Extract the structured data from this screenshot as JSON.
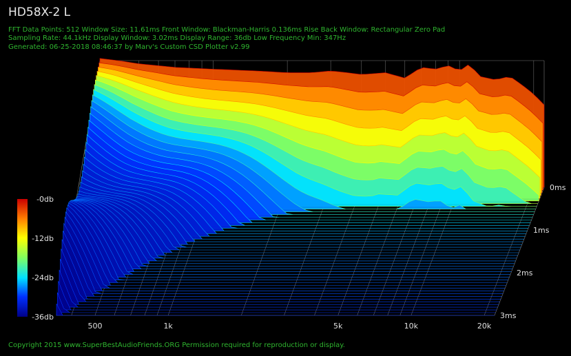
{
  "title": "HD58X-2 L",
  "info_lines": [
    "FFT Data Points: 512   Window Size: 11.61ms   Front Window: Blackman-Harris 0.136ms Rise   Back Window: Rectangular Zero Pad",
    "Sampling Rate: 44.1kHz  Display Window: 3.02ms   Display Range: 36db  Low Frequency Min: 347Hz",
    "Generated: 06-25-2018 08:46:37 by Marv's Custom CSD Plotter v2.99"
  ],
  "copyright": "Copyright 2015 www.SuperBestAudioFriends.ORG Permission required for reproduction or display.",
  "colors": {
    "background": "#000000",
    "info_text": "#2fb52f",
    "grid": "#7a7a7a"
  },
  "chart_data": {
    "type": "waterfall",
    "x_axis": {
      "scale": "log",
      "range": [
        347,
        22050
      ],
      "tick_labels": [
        "500",
        "1k",
        "5k",
        "10k",
        "20k"
      ],
      "tick_values": [
        500,
        1000,
        5000,
        10000,
        20000
      ]
    },
    "z_axis": {
      "range": [
        0,
        3
      ],
      "tick_labels": [
        "0ms",
        "1ms",
        "2ms",
        "3ms"
      ],
      "tick_values": [
        0,
        1,
        2,
        3
      ]
    },
    "color_scale": {
      "range": [
        -36,
        0
      ],
      "tick_labels": [
        "-0db",
        "-12db",
        "-24db",
        "-36db"
      ],
      "tick_values": [
        0,
        -12,
        -24,
        -36
      ],
      "colors": [
        "#000088",
        "#0030ff",
        "#00e0ff",
        "#80ff60",
        "#ffff00",
        "#ff8000",
        "#cc0000"
      ]
    },
    "initial_response": {
      "freq": [
        347,
        400,
        500,
        700,
        1000,
        1500,
        2000,
        2500,
        3000,
        3500,
        4000,
        5000,
        6000,
        7000,
        8000,
        9000,
        10000,
        11000,
        12000,
        14000,
        16000,
        18000,
        20000,
        22050
      ],
      "level_db": [
        0,
        -0.5,
        -1.5,
        -2.5,
        -3,
        -3.5,
        -4,
        -4,
        -3.5,
        -4,
        -4.5,
        -4,
        -5.5,
        -2.5,
        -3,
        -2,
        -3.5,
        -1.5,
        -5,
        -6,
        -5,
        -7.5,
        -10,
        -13
      ]
    }
  }
}
